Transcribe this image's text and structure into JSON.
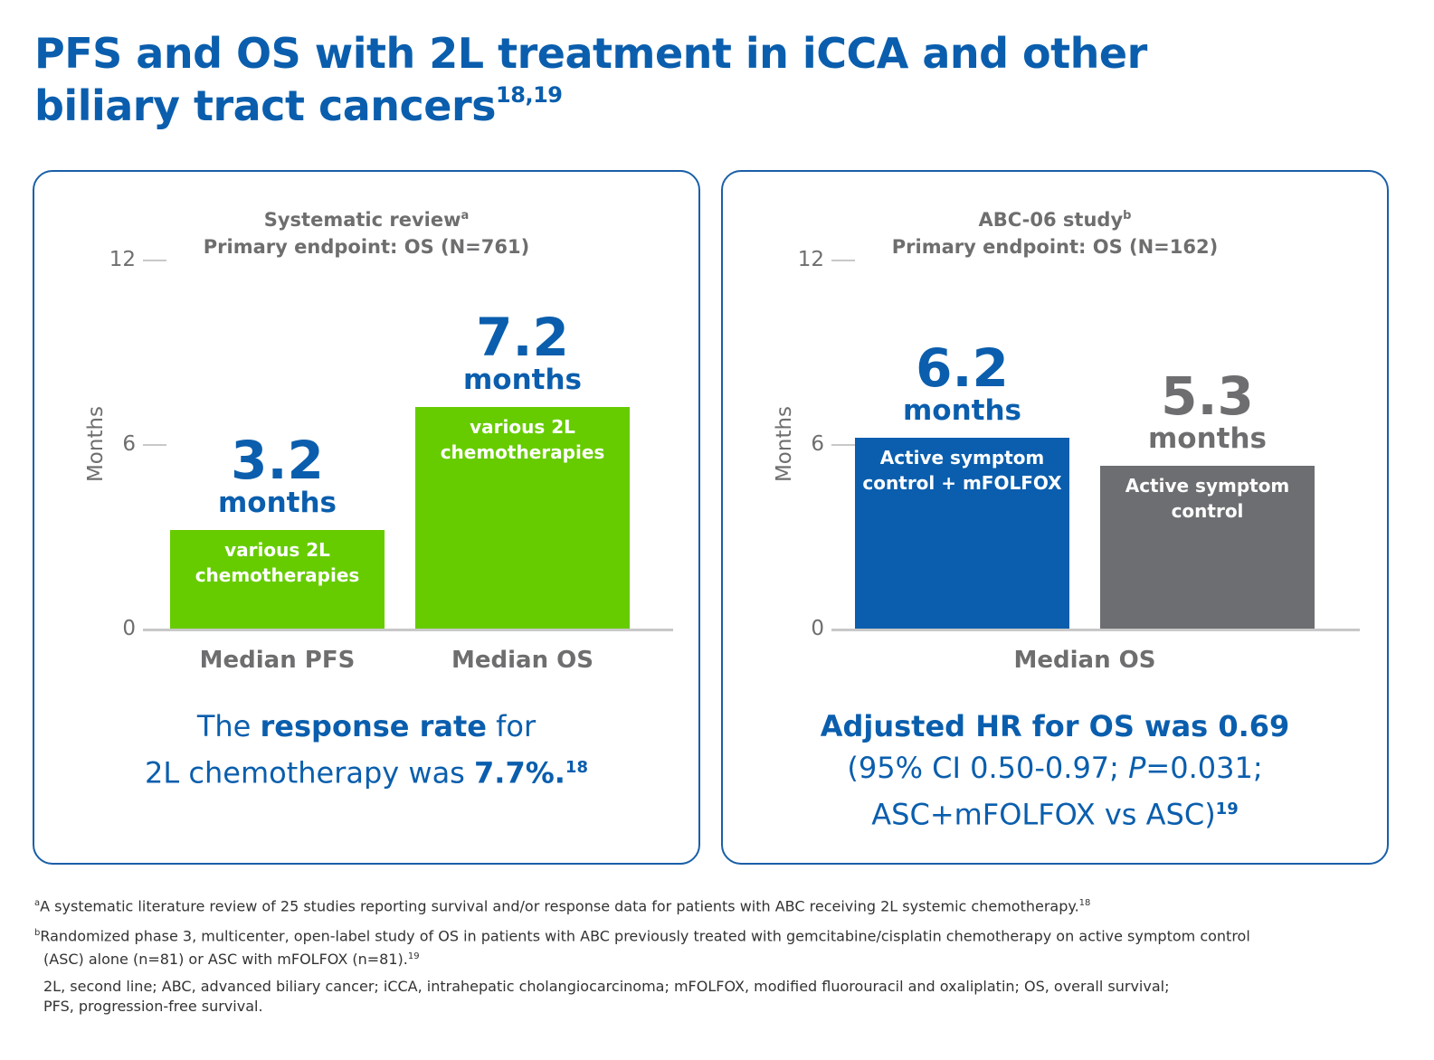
{
  "title": {
    "line1": "PFS and OS with 2L treatment in iCCA and other",
    "line2": "biliary tract cancers",
    "refs": "18,19"
  },
  "colors": {
    "brand_blue": "#0a5ead",
    "green": "#66cc00",
    "gray_bar": "#6d6e71",
    "text_gray": "#6e6e70"
  },
  "left_panel": {
    "heading_line1": "Systematic review",
    "heading_line1_sup": "a",
    "heading_line2": "Primary endpoint: OS (N=761)",
    "ylabel": "Months",
    "note_pre": "The ",
    "note_bold": "response rate",
    "note_mid": " for",
    "note_line2_pre": "2L chemotherapy was ",
    "note_line2_bold": "7.7%.",
    "note_ref": "18"
  },
  "right_panel": {
    "heading_line1": "ABC-06 study",
    "heading_line1_sup": "b",
    "heading_line2": "Primary endpoint: OS (N=162)",
    "ylabel": "Months",
    "note_line1": "Adjusted HR for OS was 0.69",
    "note_line2_pre": "(95% CI 0.50-0.97; ",
    "note_line2_p": "P",
    "note_line2_post": "=0.031;",
    "note_line3": "ASC+mFOLFOX vs ASC)",
    "note_ref": "19"
  },
  "chart_data": [
    {
      "type": "bar",
      "ylabel": "Months",
      "ylim": [
        0,
        12
      ],
      "yticks": [
        "0",
        "6",
        "12"
      ],
      "categories": [
        "Median PFS",
        "Median OS"
      ],
      "bars": [
        {
          "category": "Median PFS",
          "value": 3.2,
          "value_label": "3.2",
          "unit_label": "months",
          "bar_label_1": "various 2L",
          "bar_label_2": "chemotherapies",
          "color": "#66cc00"
        },
        {
          "category": "Median OS",
          "value": 7.2,
          "value_label": "7.2",
          "unit_label": "months",
          "bar_label_1": "various 2L",
          "bar_label_2": "chemotherapies",
          "color": "#66cc00"
        }
      ]
    },
    {
      "type": "bar",
      "ylabel": "Months",
      "ylim": [
        0,
        12
      ],
      "yticks": [
        "0",
        "6",
        "12"
      ],
      "categories": [
        "Median OS"
      ],
      "bars": [
        {
          "category": "Median OS",
          "value": 6.2,
          "value_label": "6.2",
          "unit_label": "months",
          "bar_label_1": "Active symptom",
          "bar_label_2": "control + mFOLFOX",
          "color": "#0a5ead",
          "value_color": "#0a5ead"
        },
        {
          "category": "Median OS",
          "value": 5.3,
          "value_label": "5.3",
          "unit_label": "months",
          "bar_label_1": "Active symptom",
          "bar_label_2": "control",
          "color": "#6d6e71",
          "value_color": "#6e6e70"
        }
      ]
    }
  ],
  "footnotes": {
    "a_mark": "a",
    "a_text": "A systematic literature review of 25 studies reporting survival and/or response data for patients with ABC receiving 2L systemic chemotherapy.",
    "a_ref": "18",
    "b_mark": "b",
    "b_text_1": "Randomized phase 3, multicenter, open-label study of OS in patients with ABC previously treated with gemcitabine/cisplatin chemotherapy on active symptom control",
    "b_text_2": "(ASC) alone (n=81) or ASC with mFOLFOX (n=81).",
    "b_ref": "19",
    "abbrev_1": "2L, second line; ABC, advanced biliary cancer; iCCA, intrahepatic cholangiocarcinoma; mFOLFOX, modified fluorouracil and oxaliplatin; OS, overall survival;",
    "abbrev_2": "PFS, progression-free survival."
  }
}
